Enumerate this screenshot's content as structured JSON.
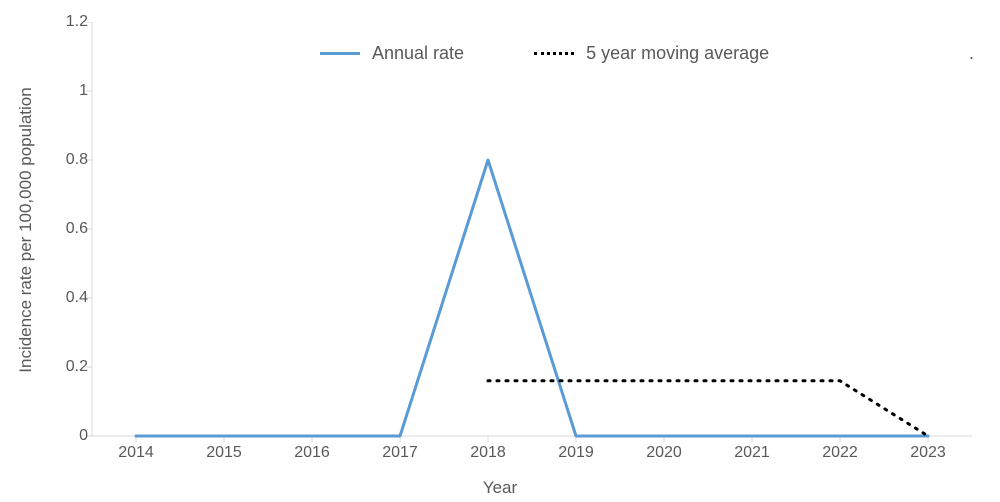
{
  "chart": {
    "type": "line",
    "background_color": "#ffffff",
    "axis_color": "#d9d9d9",
    "axis_line_width": 1,
    "label_color": "#595959",
    "label_fontsize": 16,
    "axis_title_fontsize": 17,
    "legend_fontsize": 18,
    "y_axis_title": "Incidence rate per 100,000 population",
    "x_axis_title": "Year",
    "x_categories": [
      "2014",
      "2015",
      "2016",
      "2017",
      "2018",
      "2019",
      "2020",
      "2021",
      "2022",
      "2023"
    ],
    "ylim": [
      0,
      1.2
    ],
    "ytick_step": 0.2,
    "y_ticks": [
      "0",
      "0.2",
      "0.4",
      "0.6",
      "0.8",
      "1",
      "1.2"
    ],
    "tick_mark_length": 6,
    "series": [
      {
        "name": "Annual rate",
        "color": "#5b9bd5",
        "line_width": 3,
        "dash": "none",
        "values": [
          0,
          0,
          0,
          0,
          0.8,
          0,
          0,
          0,
          0,
          0
        ]
      },
      {
        "name": "5 year moving average",
        "color": "#000000",
        "line_width": 3,
        "dash": "2,7",
        "values": [
          null,
          null,
          null,
          null,
          0.16,
          0.16,
          0.16,
          0.16,
          0.16,
          0
        ]
      }
    ],
    "legend_trailing_dot": "."
  }
}
